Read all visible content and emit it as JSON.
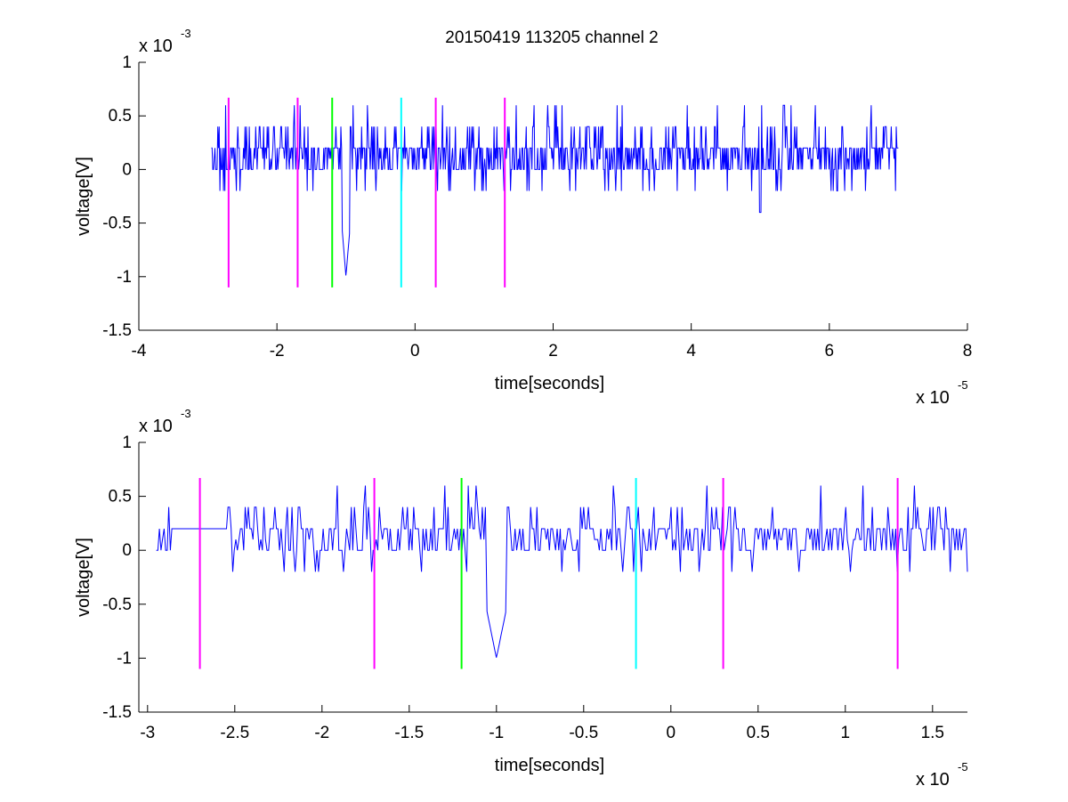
{
  "figure_title": "20150419 113205 channel 2",
  "colors": {
    "signal": "#0000ff",
    "marker_primary": "#ff00ff",
    "marker_green": "#00ff00",
    "marker_cyan": "#00ffff",
    "axes": "#000000",
    "background": "#ffffff"
  },
  "chart_data": [
    {
      "type": "line",
      "title": "20150419 113205 channel 2",
      "xlabel": "time[seconds]",
      "ylabel": "voltage[V]",
      "x_exponent_label": "x 10",
      "x_exponent": "-5",
      "y_exponent_label": "x 10",
      "y_exponent": "-3",
      "xlim": [
        -4,
        8
      ],
      "ylim": [
        -1.5,
        1
      ],
      "xticks": [
        -4,
        -2,
        0,
        2,
        4,
        6,
        8
      ],
      "xtick_labels": [
        "-4",
        "-2",
        "0",
        "2",
        "4",
        "6",
        "8"
      ],
      "yticks": [
        -1.5,
        -1,
        -0.5,
        0,
        0.5,
        1
      ],
      "ytick_labels": [
        "-1.5",
        "-1",
        "-0.5",
        "0",
        "0.5",
        "1"
      ],
      "grid": false,
      "series": [
        {
          "kind": "noise_trace",
          "x_start": -2.95,
          "x_end": 7.0,
          "levels": [
            0,
            0.2,
            0.4
          ],
          "note_values": {
            "baseline_min": -0.2,
            "peak_max": 0.6,
            "spike_min_at_-1.0": -1.0,
            "dip_at_5.0": -0.4
          }
        }
      ],
      "markers": [
        {
          "x": -2.7,
          "y_top": 0.67,
          "y_bottom": -1.1,
          "color": "magenta"
        },
        {
          "x": -1.7,
          "y_top": 0.67,
          "y_bottom": -1.1,
          "color": "magenta"
        },
        {
          "x": -1.2,
          "y_top": 0.67,
          "y_bottom": -1.1,
          "color": "green"
        },
        {
          "x": -0.2,
          "y_top": 0.67,
          "y_bottom": -1.1,
          "color": "cyan"
        },
        {
          "x": 0.3,
          "y_top": 0.67,
          "y_bottom": -1.1,
          "color": "magenta"
        },
        {
          "x": 1.3,
          "y_top": 0.67,
          "y_bottom": -1.1,
          "color": "magenta"
        }
      ]
    },
    {
      "type": "line",
      "xlabel": "time[seconds]",
      "ylabel": "voltage[V]",
      "x_exponent_label": "x 10",
      "x_exponent": "-5",
      "y_exponent_label": "x 10",
      "y_exponent": "-3",
      "xlim": [
        -3.05,
        1.7
      ],
      "ylim": [
        -1.5,
        1
      ],
      "xticks": [
        -3,
        -2.5,
        -2,
        -1.5,
        -1,
        -0.5,
        0,
        0.5,
        1,
        1.5
      ],
      "xtick_labels": [
        "-3",
        "-2.5",
        "-2",
        "-1.5",
        "-1",
        "-0.5",
        "0",
        "0.5",
        "1",
        "1.5"
      ],
      "yticks": [
        -1.5,
        -1,
        -0.5,
        0,
        0.5,
        1
      ],
      "ytick_labels": [
        "-1.5",
        "-1",
        "-0.5",
        "0",
        "0.5",
        "1"
      ],
      "grid": false,
      "series": [
        {
          "kind": "noise_trace",
          "x_start": -2.95,
          "x_end": 1.7,
          "levels": [
            0,
            0.2,
            0.4
          ],
          "note_values": {
            "baseline_min": -0.2,
            "peak_max": 0.6,
            "spike_min_at_-1.0": -1.0
          }
        }
      ],
      "markers": [
        {
          "x": -2.7,
          "y_top": 0.67,
          "y_bottom": -1.1,
          "color": "magenta"
        },
        {
          "x": -1.7,
          "y_top": 0.67,
          "y_bottom": -1.1,
          "color": "magenta"
        },
        {
          "x": -1.2,
          "y_top": 0.67,
          "y_bottom": -1.1,
          "color": "green"
        },
        {
          "x": -0.2,
          "y_top": 0.67,
          "y_bottom": -1.1,
          "color": "cyan"
        },
        {
          "x": 0.3,
          "y_top": 0.67,
          "y_bottom": -1.1,
          "color": "magenta"
        },
        {
          "x": 1.3,
          "y_top": 0.67,
          "y_bottom": -1.1,
          "color": "magenta"
        }
      ]
    }
  ]
}
